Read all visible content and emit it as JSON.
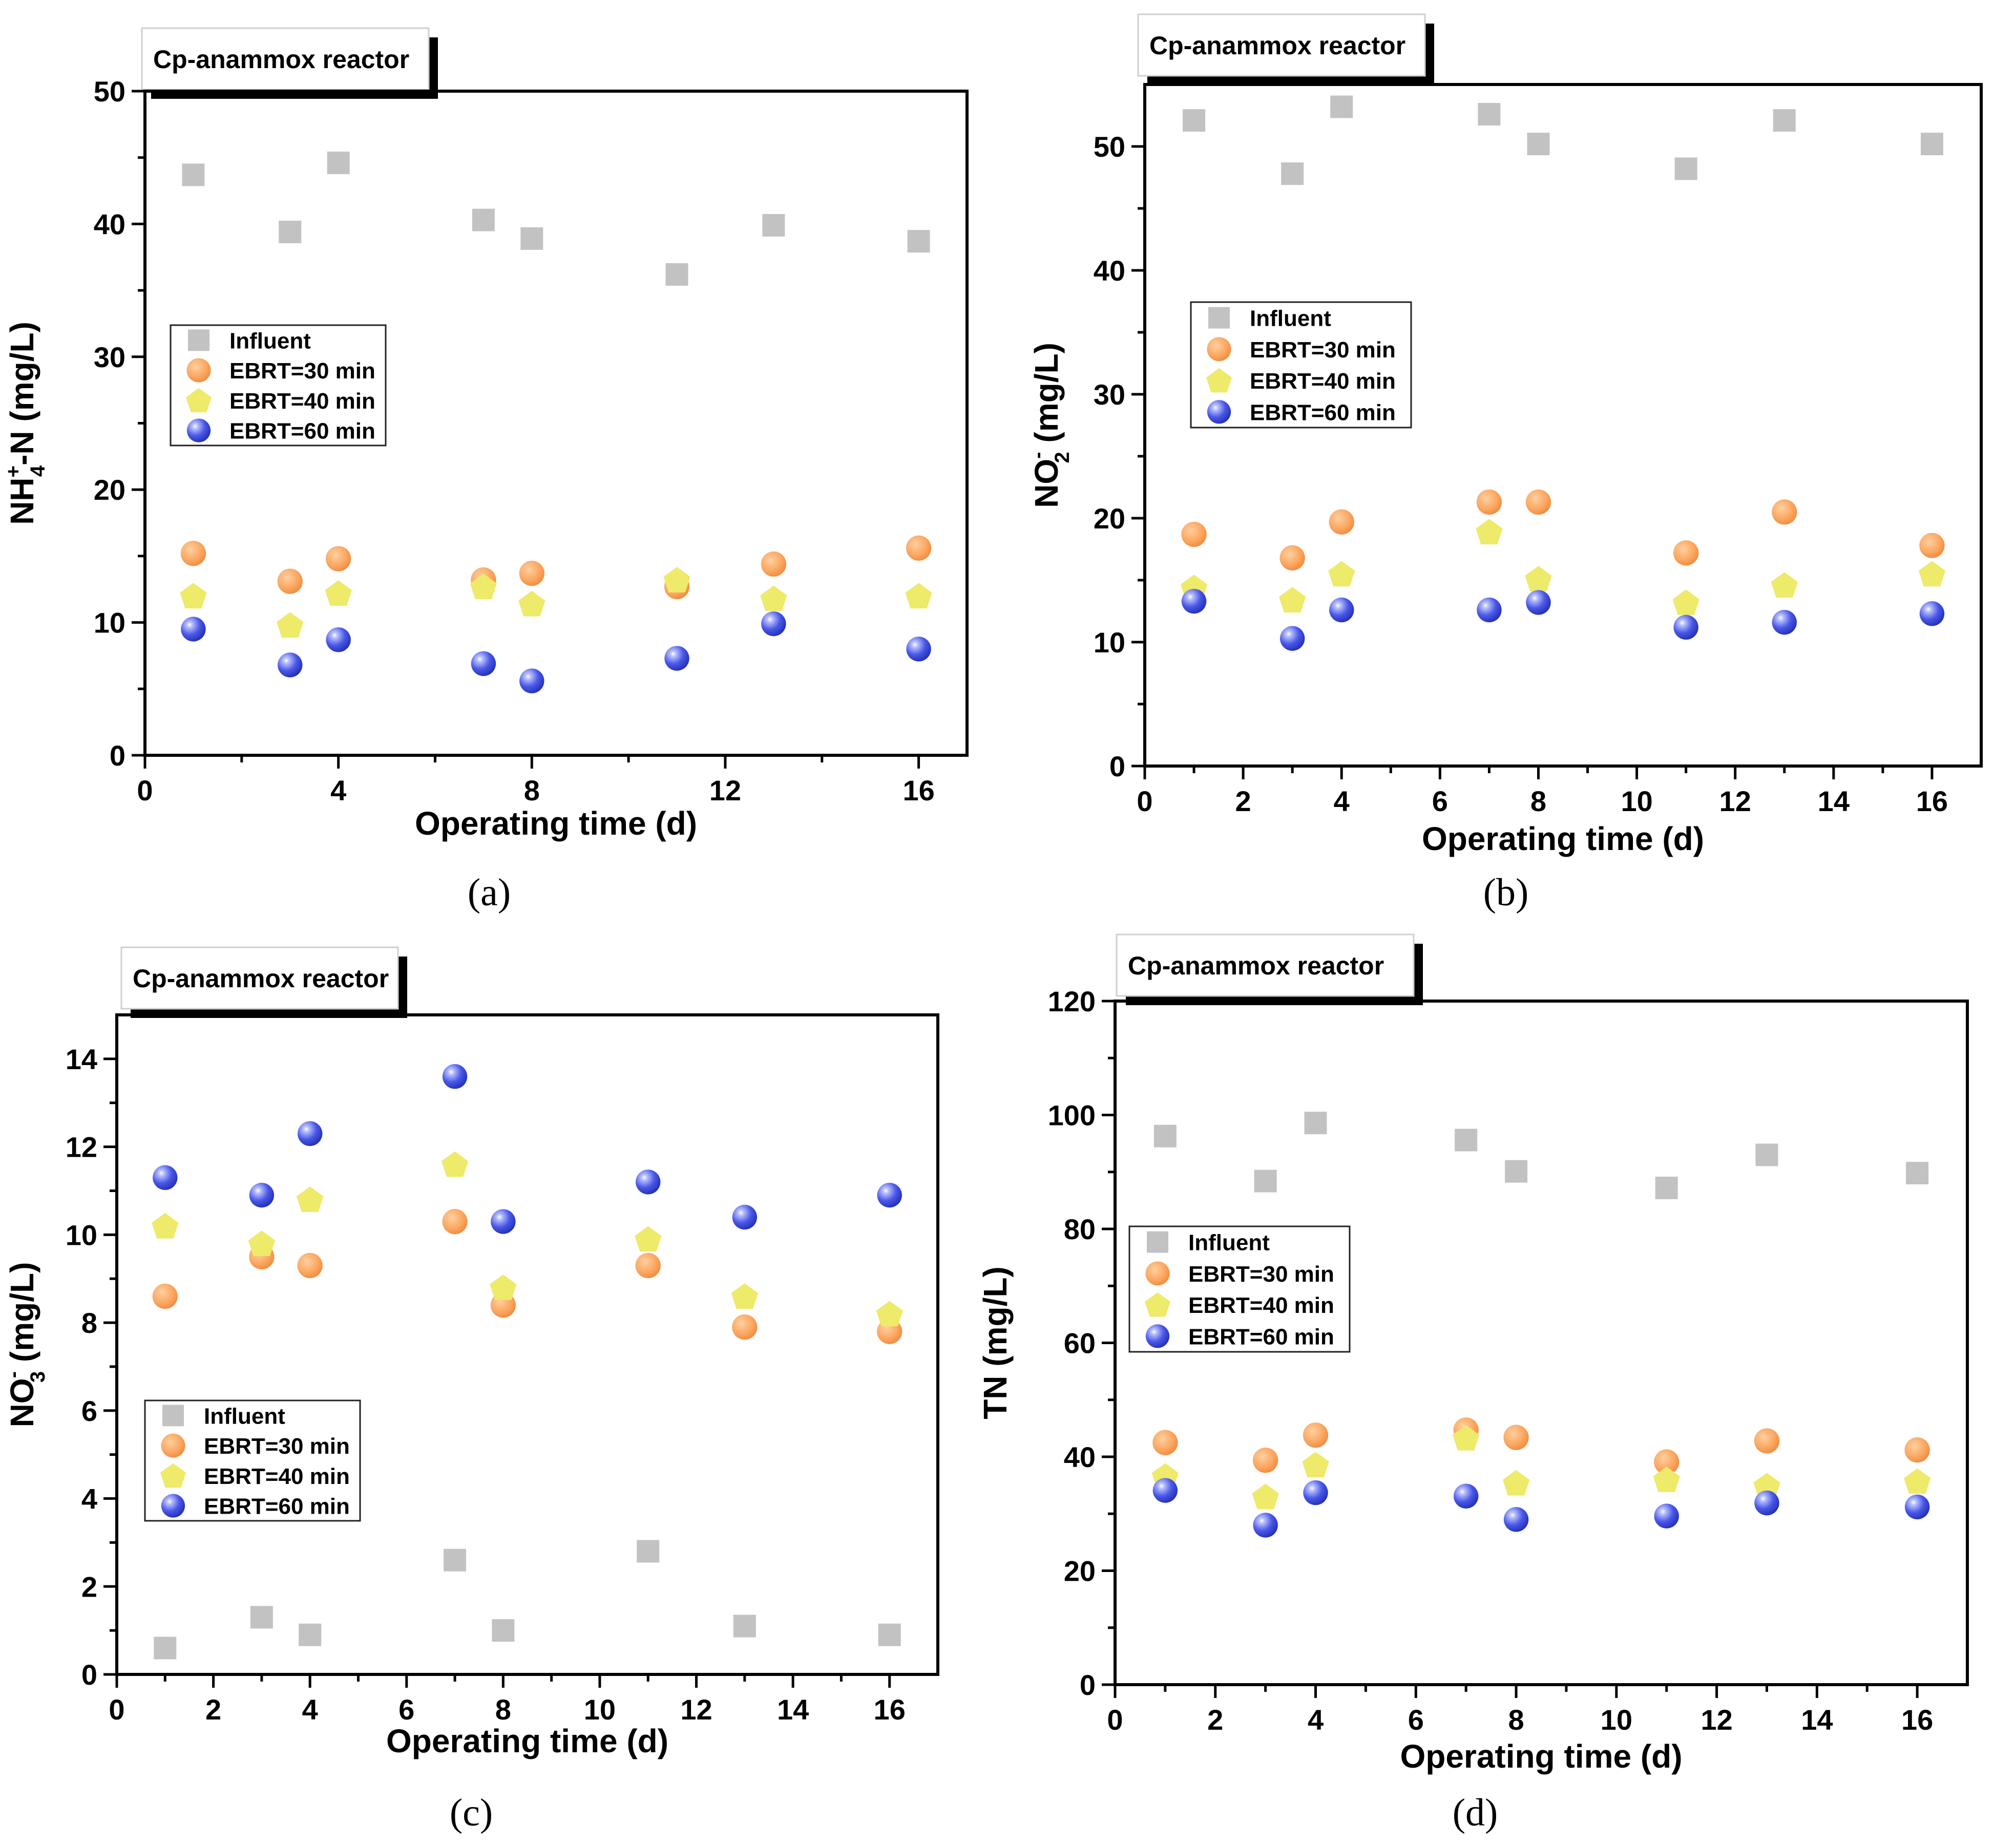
{
  "colors": {
    "influent": "#c2c2c2",
    "ebrt30": "#fca862",
    "ebrt40": "#eeea6a",
    "ebrt60": "#4a58e8"
  },
  "chart_data": [
    {
      "type": "scatter",
      "panel": "(a)",
      "box_title": "Cp-anammox reactor",
      "xlabel": "Operating time (d)",
      "ylabel": "NH4+-N (mg/L)",
      "ylabel_parts": {
        "main": "NH",
        "sub": "4",
        "sup": "+",
        "rest": "-N  (mg/L)"
      },
      "xlim": [
        0,
        17
      ],
      "ylim": [
        0,
        50
      ],
      "xticks": [
        0,
        4,
        8,
        12,
        16
      ],
      "yticks": [
        0,
        10,
        20,
        30,
        40,
        50
      ],
      "legend": [
        "Influent",
        "EBRT=30 min",
        "EBRT=40 min",
        "EBRT=60 min"
      ],
      "x": [
        1,
        3,
        4,
        7,
        8,
        11,
        13,
        16
      ],
      "series": [
        {
          "name": "Influent",
          "values": [
            43.7,
            39.4,
            44.6,
            40.3,
            38.9,
            36.2,
            39.9,
            38.7
          ]
        },
        {
          "name": "EBRT=30 min",
          "values": [
            15.2,
            13.1,
            14.8,
            13.2,
            13.7,
            12.7,
            14.4,
            15.6
          ]
        },
        {
          "name": "EBRT=40 min",
          "values": [
            12.0,
            9.8,
            12.2,
            12.7,
            11.4,
            13.2,
            11.8,
            12.0
          ]
        },
        {
          "name": "EBRT=60 min",
          "values": [
            9.5,
            6.8,
            8.7,
            6.9,
            5.6,
            7.3,
            9.9,
            8.0
          ]
        }
      ]
    },
    {
      "type": "scatter",
      "panel": "(b)",
      "box_title": "Cp-anammox reactor",
      "xlabel": "Operating time (d)",
      "ylabel": "NO2- (mg/L)",
      "ylabel_parts": {
        "main": "NO",
        "sub": "2",
        "sup": "-",
        "rest": "  (mg/L)"
      },
      "xlim": [
        0,
        17
      ],
      "ylim": [
        0,
        55
      ],
      "xticks": [
        0,
        2,
        4,
        6,
        8,
        10,
        12,
        14,
        16
      ],
      "yticks": [
        0,
        10,
        20,
        30,
        40,
        50
      ],
      "legend": [
        "Influent",
        "EBRT=30 min",
        "EBRT=40 min",
        "EBRT=60 min"
      ],
      "x": [
        1,
        3,
        4,
        7,
        8,
        11,
        13,
        16
      ],
      "series": [
        {
          "name": "Influent",
          "values": [
            52.1,
            47.8,
            53.2,
            52.6,
            50.2,
            48.2,
            52.1,
            50.2
          ]
        },
        {
          "name": "EBRT=30 min",
          "values": [
            18.7,
            16.8,
            19.7,
            21.3,
            21.3,
            17.2,
            20.5,
            17.8
          ]
        },
        {
          "name": "EBRT=40 min",
          "values": [
            14.4,
            13.4,
            15.5,
            18.9,
            15.1,
            13.2,
            14.6,
            15.5
          ]
        },
        {
          "name": "EBRT=60 min",
          "values": [
            13.3,
            10.3,
            12.6,
            12.6,
            13.2,
            11.2,
            11.6,
            12.3
          ]
        }
      ]
    },
    {
      "type": "scatter",
      "panel": "(c)",
      "box_title": "Cp-anammox reactor",
      "xlabel": "Operating time (d)",
      "ylabel": "NO3- (mg/L)",
      "ylabel_parts": {
        "main": "NO",
        "sub": "3",
        "sup": "-",
        "rest": "  (mg/L)"
      },
      "xlim": [
        0,
        17
      ],
      "ylim": [
        0,
        15
      ],
      "xticks": [
        0,
        2,
        4,
        6,
        8,
        10,
        12,
        14,
        16
      ],
      "yticks": [
        0,
        2,
        4,
        6,
        8,
        10,
        12,
        14
      ],
      "legend": [
        "Influent",
        "EBRT=30 min",
        "EBRT=40 min",
        "EBRT=60 min"
      ],
      "x": [
        1,
        3,
        4,
        7,
        8,
        11,
        13,
        16
      ],
      "series": [
        {
          "name": "Influent",
          "values": [
            0.6,
            1.3,
            0.9,
            2.6,
            1.0,
            2.8,
            1.1,
            0.9
          ]
        },
        {
          "name": "EBRT=30 min",
          "values": [
            8.6,
            9.5,
            9.3,
            10.3,
            8.4,
            9.3,
            7.9,
            7.8
          ]
        },
        {
          "name": "EBRT=40 min",
          "values": [
            10.2,
            9.8,
            10.8,
            11.6,
            8.8,
            9.9,
            8.6,
            8.2
          ]
        },
        {
          "name": "EBRT=60 min",
          "values": [
            11.3,
            10.9,
            12.3,
            13.6,
            10.3,
            11.2,
            10.4,
            10.9
          ]
        }
      ]
    },
    {
      "type": "scatter",
      "panel": "(d)",
      "box_title": "Cp-anammox reactor",
      "xlabel": "Operating time (d)",
      "ylabel": "TN (mg/L)",
      "ylabel_parts": {
        "main": "TN",
        "sub": "",
        "sup": "",
        "rest": "  (mg/L)"
      },
      "xlim": [
        0,
        17
      ],
      "ylim": [
        0,
        120
      ],
      "xticks": [
        0,
        2,
        4,
        6,
        8,
        10,
        12,
        14,
        16
      ],
      "yticks": [
        0,
        20,
        40,
        60,
        80,
        100,
        120
      ],
      "legend": [
        "Influent",
        "EBRT=30 min",
        "EBRT=40 min",
        "EBRT=60 min"
      ],
      "x": [
        1,
        3,
        4,
        7,
        8,
        11,
        13,
        16
      ],
      "series": [
        {
          "name": "Influent",
          "values": [
            96.3,
            88.4,
            98.6,
            95.6,
            90.1,
            87.2,
            93.0,
            89.8
          ]
        },
        {
          "name": "EBRT=30 min",
          "values": [
            42.5,
            39.4,
            43.8,
            44.7,
            43.4,
            39.1,
            42.8,
            41.2
          ]
        },
        {
          "name": "EBRT=40 min",
          "values": [
            36.6,
            33.0,
            38.6,
            43.3,
            35.4,
            36.0,
            34.9,
            35.7
          ]
        },
        {
          "name": "EBRT=60 min",
          "values": [
            34.1,
            28.0,
            33.7,
            33.1,
            29.0,
            29.6,
            31.9,
            31.2
          ]
        }
      ]
    }
  ]
}
